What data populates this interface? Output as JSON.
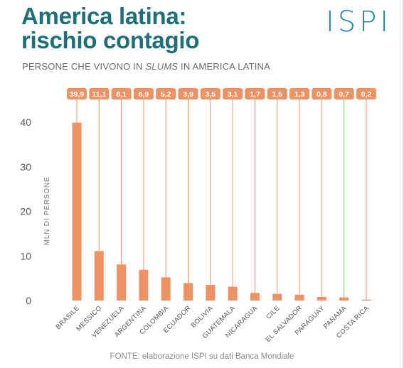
{
  "title_line1": "America latina:",
  "title_line2": "rischio contagio",
  "subtitle_prefix": "PERSONE CHE VIVONO IN ",
  "subtitle_italic": "SLUMS",
  "subtitle_suffix": " IN AMERICA LATINA",
  "logo_text": "ISPI",
  "source": "FONTE: elaborazione ISPI su dati Banca Mondiale",
  "colors": {
    "title": "#1f6f7a",
    "bar": "#ee9263",
    "label_bg": "#ee9263",
    "logo": "#1f8aa0"
  },
  "chart_data": {
    "type": "bar",
    "categories": [
      "BRASILE",
      "MESSICO",
      "VENEZUELA",
      "ARGENTINA",
      "COLOMBIA",
      "ECUADOR",
      "BOLIVIA",
      "GUATEMALA",
      "NICARAGUA",
      "CILE",
      "EL SALVADOR",
      "PARAGUAY",
      "PANAMA",
      "COSTA RICA"
    ],
    "values": [
      39.9,
      11.1,
      8.1,
      6.9,
      5.2,
      3.9,
      3.5,
      3.1,
      1.7,
      1.5,
      1.3,
      0.8,
      0.7,
      0.2
    ],
    "value_labels": [
      "39,9",
      "11,1",
      "8,1",
      "6,9",
      "5,2",
      "3,9",
      "3,5",
      "3,1",
      "1,7",
      "1,5",
      "1,3",
      "0,8",
      "0,7",
      "0,2"
    ],
    "ylabel": "MLN DI PERSONE",
    "xlabel": "",
    "yticks": [
      0,
      10,
      20,
      30,
      40
    ],
    "ylim": [
      0,
      40
    ],
    "grid": false
  }
}
